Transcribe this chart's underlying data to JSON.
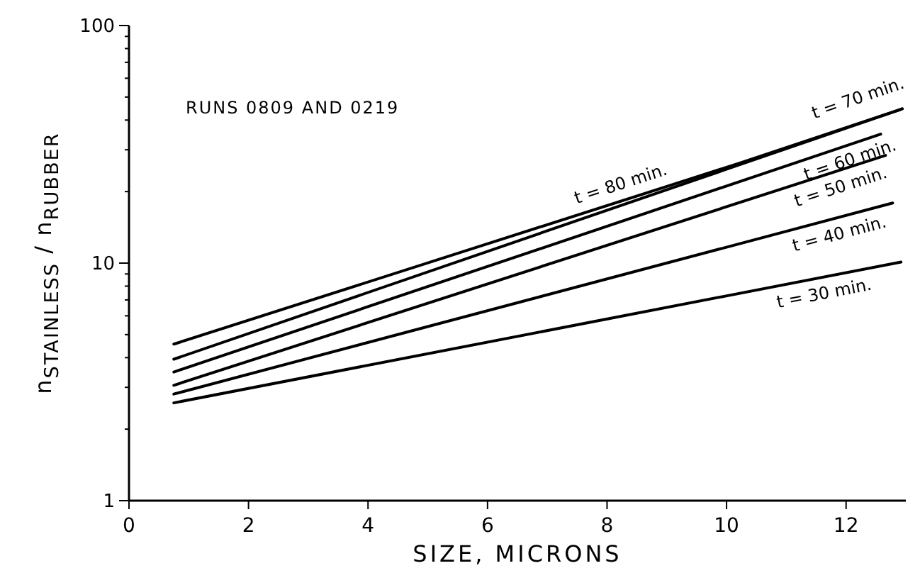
{
  "chart_data": {
    "type": "line",
    "xlabel": "SIZE, MICRONS",
    "ylabel": "n$_{STAINLESS}$ / n$_{RUBBER}$",
    "log": "y",
    "xlim": [
      0,
      13
    ],
    "xticks": [
      0,
      2,
      4,
      6,
      8,
      10,
      12
    ],
    "ylim": [
      1,
      100
    ],
    "yticks": [
      1,
      {
        "value": 2,
        "label": null
      },
      {
        "value": 3,
        "label": null
      },
      {
        "value": 4,
        "label": null
      },
      {
        "value": 5,
        "label": null
      },
      {
        "value": 6,
        "label": null
      },
      {
        "value": 7,
        "label": null
      },
      {
        "value": 8,
        "label": null
      },
      {
        "value": 9,
        "label": null
      },
      10,
      {
        "value": 20,
        "label": null
      },
      {
        "value": 30,
        "label": null
      },
      {
        "value": 40,
        "label": null
      },
      {
        "value": 50,
        "label": null
      },
      {
        "value": 60,
        "label": null
      },
      {
        "value": 70,
        "label": null
      },
      {
        "value": 80,
        "label": null
      },
      {
        "value": 90,
        "label": null
      },
      100
    ],
    "grid": false,
    "marker": "none",
    "line_style": "solid",
    "series": [
      {
        "name": "t = 80 min.",
        "color": "#000000",
        "x": [
          0.75,
          10.25,
          12.94
        ],
        "values": [
          4.56,
          26.5,
          44.6
        ]
      },
      {
        "name": "t = 70 min.",
        "color": "#000000",
        "x": [
          0.75,
          12.94
        ],
        "values": [
          3.94,
          44.6
        ]
      },
      {
        "name": "t = 60 min.",
        "color": "#000000",
        "x": [
          0.75,
          12.58
        ],
        "values": [
          3.48,
          34.9
        ]
      },
      {
        "name": "t = 50 min.",
        "color": "#000000",
        "x": [
          0.75,
          12.66
        ],
        "values": [
          3.06,
          28.4
        ]
      },
      {
        "name": "t = 40 min.",
        "color": "#000000",
        "x": [
          0.75,
          12.78
        ],
        "values": [
          2.81,
          17.9
        ]
      },
      {
        "name": "t = 30 min.",
        "color": "#000000",
        "x": [
          0.75,
          12.92
        ],
        "values": [
          2.58,
          10.1
        ]
      }
    ],
    "annotations": [
      "RUNS 0809 AND 0219"
    ]
  }
}
